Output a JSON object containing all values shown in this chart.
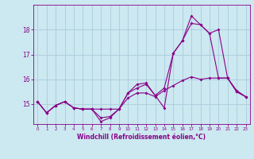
{
  "xlabel": "Windchill (Refroidissement éolien,°C)",
  "background_color": "#cce8f0",
  "grid_color": "#aaccdd",
  "line_color": "#880088",
  "x_values": [
    0,
    1,
    2,
    3,
    4,
    5,
    6,
    7,
    8,
    9,
    10,
    11,
    12,
    13,
    14,
    15,
    16,
    17,
    18,
    19,
    20,
    21,
    22,
    23
  ],
  "series1": [
    15.1,
    14.65,
    14.95,
    15.1,
    14.85,
    14.8,
    14.8,
    14.8,
    14.8,
    14.8,
    15.25,
    15.45,
    15.45,
    15.3,
    15.55,
    15.75,
    15.95,
    16.1,
    16.0,
    16.05,
    16.05,
    16.05,
    15.5,
    15.3
  ],
  "series2": [
    15.1,
    14.65,
    14.95,
    15.1,
    14.85,
    14.8,
    14.8,
    14.45,
    14.5,
    14.8,
    15.45,
    15.65,
    15.8,
    15.35,
    15.65,
    17.05,
    17.55,
    18.25,
    18.2,
    17.85,
    16.05,
    16.05,
    15.5,
    15.3
  ],
  "series3": [
    15.1,
    14.65,
    14.95,
    15.1,
    14.85,
    14.8,
    14.8,
    14.3,
    14.45,
    14.8,
    15.45,
    15.8,
    15.85,
    15.35,
    14.85,
    17.05,
    17.55,
    18.55,
    18.2,
    17.85,
    18.0,
    16.05,
    15.55,
    15.3
  ],
  "yticks": [
    15,
    16,
    17,
    18
  ],
  "ylim": [
    14.2,
    19.0
  ],
  "xlim": [
    -0.5,
    23.5
  ]
}
